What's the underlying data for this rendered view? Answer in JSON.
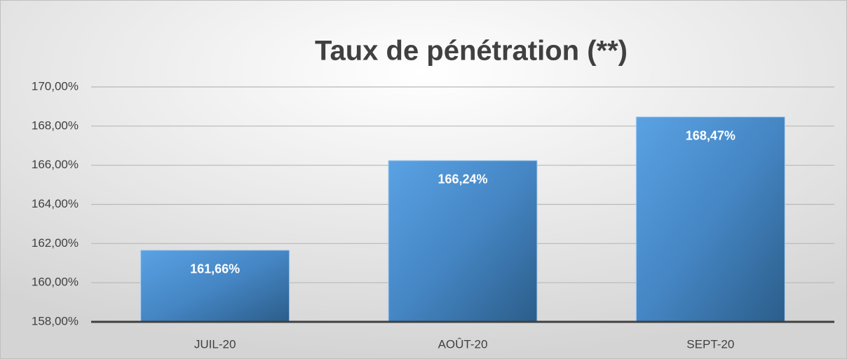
{
  "chart_data": {
    "type": "bar",
    "title": "Taux de pénétration (**)",
    "categories": [
      "JUIL-20",
      "AOÛT-20",
      "SEPT-20"
    ],
    "values": [
      161.66,
      166.24,
      168.47
    ],
    "value_labels": [
      "161,66%",
      "166,24%",
      "168,47%"
    ],
    "color": "#4a8fd0",
    "ylim": [
      158,
      170
    ],
    "yticks": [
      {
        "value": 158,
        "label": "158,00%"
      },
      {
        "value": 160,
        "label": "160,00%"
      },
      {
        "value": 162,
        "label": "162,00%"
      },
      {
        "value": 164,
        "label": "164,00%"
      },
      {
        "value": 166,
        "label": "166,00%"
      },
      {
        "value": 168,
        "label": "168,00%"
      },
      {
        "value": 170,
        "label": "170,00%"
      }
    ],
    "grid": true
  }
}
